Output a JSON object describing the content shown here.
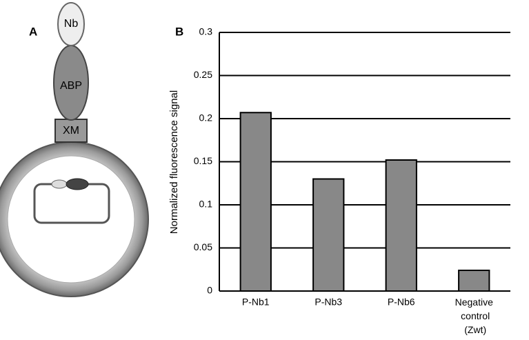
{
  "panel_a": {
    "label": "A",
    "nodes": [
      {
        "label": "Nb"
      },
      {
        "label": "ABP"
      },
      {
        "label": "XM"
      }
    ]
  },
  "panel_b": {
    "label": "B"
  },
  "chart_data": {
    "type": "bar",
    "y_label": "Normalized fluorescence signal",
    "categories": [
      "P-Nb1",
      "P-Nb3",
      "P-Nb6",
      "Negative control (Zwt)"
    ],
    "values": [
      0.207,
      0.13,
      0.152,
      0.024
    ],
    "color": "#888888",
    "ylim": [
      0,
      0.3
    ],
    "yticks": [
      0,
      0.05,
      0.1,
      0.15,
      0.2,
      0.25,
      0.3
    ],
    "grid": true
  }
}
